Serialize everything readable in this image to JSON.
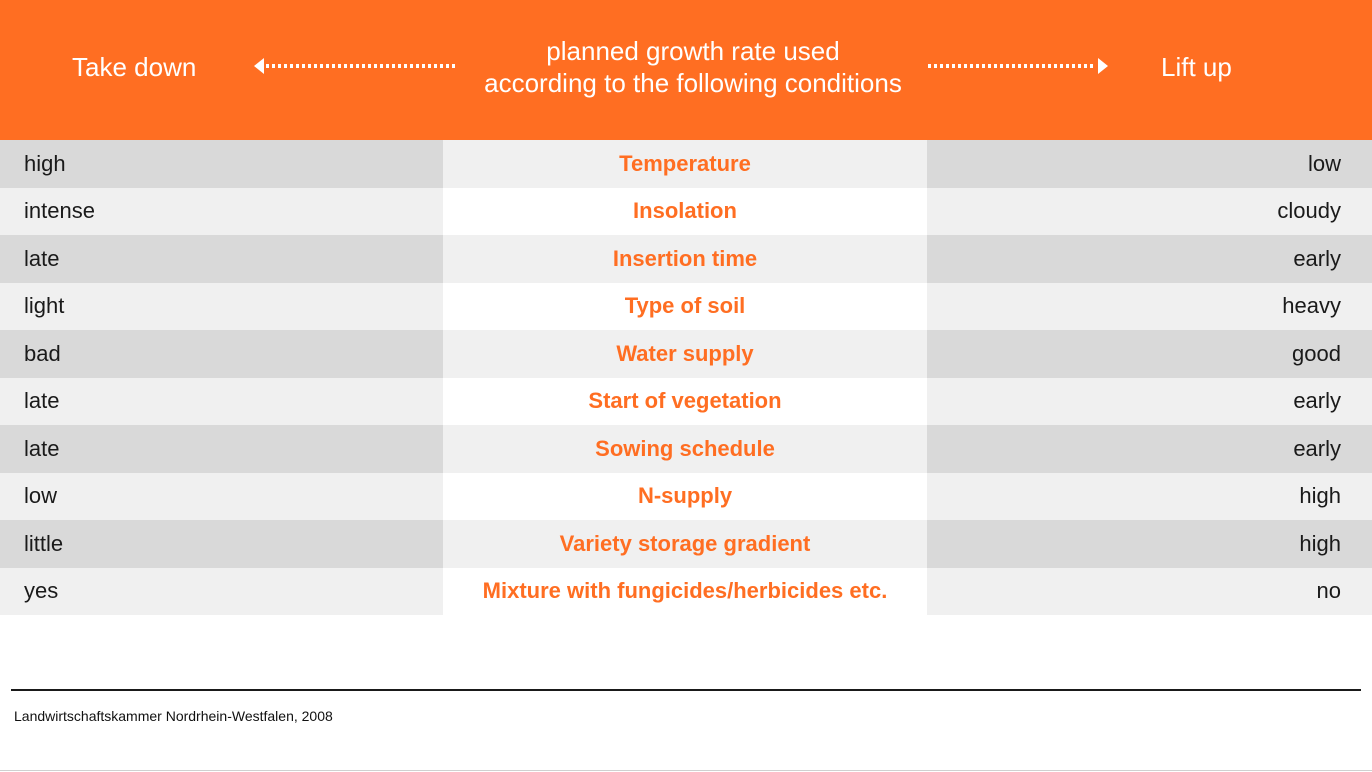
{
  "header": {
    "left_label": "Take down",
    "center_line1": "planned growth rate used",
    "center_line2": "according to the following conditions",
    "right_label": "Lift up"
  },
  "colors": {
    "accent": "#ff6e22",
    "row_dark": "#d9d9d9",
    "row_light": "#f0f0f0",
    "text": "#1a1a1a"
  },
  "rows": [
    {
      "left": "high",
      "condition": "Temperature",
      "right": "low"
    },
    {
      "left": "intense",
      "condition": "Insolation",
      "right": "cloudy"
    },
    {
      "left": "late",
      "condition": "Insertion time",
      "right": "early"
    },
    {
      "left": "light",
      "condition": "Type of soil",
      "right": "heavy"
    },
    {
      "left": "bad",
      "condition": "Water supply",
      "right": "good"
    },
    {
      "left": "late",
      "condition": "Start of vegetation",
      "right": "early"
    },
    {
      "left": "late",
      "condition": "Sowing schedule",
      "right": "early"
    },
    {
      "left": "low",
      "condition": "N-supply",
      "right": "high"
    },
    {
      "left": "little",
      "condition": "Variety storage gradient",
      "right": "high"
    },
    {
      "left": "yes",
      "condition": "Mixture with fungicides/herbicides etc.",
      "right": "no"
    }
  ],
  "footer": {
    "source": "Landwirtschaftskammer Nordrhein-Westfalen, 2008"
  },
  "icons": {
    "left_arrow": "arrow-left-dotted-icon",
    "right_arrow": "arrow-right-dotted-icon"
  }
}
